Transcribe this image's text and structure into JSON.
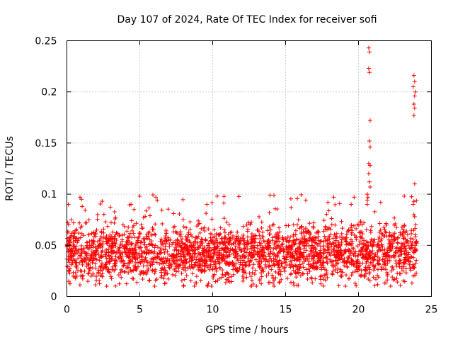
{
  "chart_data": {
    "type": "scatter",
    "title": "Day 107 of 2024, Rate Of TEC Index for receiver sofi",
    "xlabel": "GPS time / hours",
    "ylabel": "ROTI / TECUs",
    "xlim": [
      0,
      25
    ],
    "ylim": [
      0,
      0.25
    ],
    "x_ticks": [
      0,
      5,
      10,
      15,
      20,
      25
    ],
    "y_ticks": [
      0,
      0.05,
      0.1,
      0.15,
      0.2,
      0.25
    ],
    "x_tick_labels": [
      "0",
      "5",
      "10",
      "15",
      "20",
      "25"
    ],
    "y_tick_labels": [
      "0",
      "0.05",
      "0.1",
      "0.15",
      "0.2",
      "0.25"
    ],
    "grid": true,
    "marker": "+",
    "color": "#ff0000",
    "series": [
      {
        "name": "ROTI",
        "generated_band": {
          "x_range": [
            0,
            24
          ],
          "typical_range": [
            0.015,
            0.07
          ],
          "outer_range": [
            0.01,
            0.1
          ],
          "point_count": 2600
        },
        "points": [
          [
            0.1,
            0.09
          ],
          [
            0.3,
            0.075
          ],
          [
            0.9,
            0.097
          ],
          [
            1.0,
            0.095
          ],
          [
            1.05,
            0.088
          ],
          [
            2.1,
            0.08
          ],
          [
            4.4,
            0.09
          ],
          [
            4.6,
            0.085
          ],
          [
            5.0,
            0.098
          ],
          [
            6.1,
            0.097
          ],
          [
            6.2,
            0.094
          ],
          [
            9.6,
            0.09
          ],
          [
            14.2,
            0.099
          ],
          [
            17.9,
            0.092
          ],
          [
            18.3,
            0.097
          ],
          [
            19.7,
            0.097
          ],
          [
            19.5,
            0.09
          ],
          [
            20.7,
            0.243
          ],
          [
            20.75,
            0.239
          ],
          [
            20.7,
            0.223
          ],
          [
            20.75,
            0.219
          ],
          [
            20.8,
            0.172
          ],
          [
            20.75,
            0.152
          ],
          [
            20.8,
            0.146
          ],
          [
            20.7,
            0.13
          ],
          [
            20.8,
            0.128
          ],
          [
            20.7,
            0.12
          ],
          [
            20.75,
            0.112
          ],
          [
            20.8,
            0.107
          ],
          [
            20.6,
            0.1
          ],
          [
            20.65,
            0.097
          ],
          [
            20.6,
            0.09
          ],
          [
            23.8,
            0.216
          ],
          [
            23.85,
            0.21
          ],
          [
            23.75,
            0.205
          ],
          [
            23.9,
            0.2
          ],
          [
            23.85,
            0.196
          ],
          [
            23.8,
            0.188
          ],
          [
            23.85,
            0.184
          ],
          [
            23.8,
            0.177
          ],
          [
            23.85,
            0.11
          ],
          [
            23.8,
            0.093
          ],
          [
            23.75,
            0.09
          ],
          [
            23.8,
            0.08
          ],
          [
            23.85,
            0.078
          ]
        ]
      }
    ]
  }
}
